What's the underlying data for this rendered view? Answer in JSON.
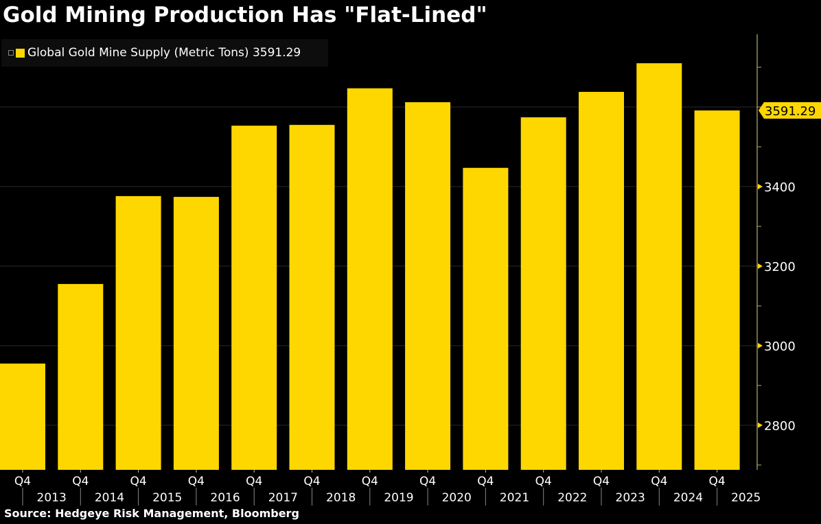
{
  "chart_data": {
    "type": "bar",
    "title": "Gold Mining Production Has \"Flat-Lined\"",
    "source": "Source: Hedgeye Risk Management, Bloomberg",
    "series": [
      {
        "name": "Global Gold Mine Supply (Metric Tons)",
        "last_value_label": "3591.29",
        "color": "#ffd700",
        "values": [
          2955,
          3155,
          3376,
          3374,
          3553,
          3555,
          3647,
          3612,
          3447,
          3574,
          3638,
          3710,
          3591.29
        ]
      }
    ],
    "categories": [
      "Q4 2013",
      "Q4 2014",
      "Q4 2015",
      "Q4 2016",
      "Q4 2017",
      "Q4 2018",
      "Q4 2019",
      "Q4 2020",
      "Q4 2021",
      "Q4 2022",
      "Q4 2023",
      "Q4 2024",
      "Q4 2025"
    ],
    "x_quarter_labels": [
      "Q4",
      "Q4",
      "Q4",
      "Q4",
      "Q4",
      "Q4",
      "Q4",
      "Q4",
      "Q4",
      "Q4",
      "Q4",
      "Q4",
      "Q4"
    ],
    "x_year_labels": [
      "2013",
      "2014",
      "2015",
      "2016",
      "2017",
      "2018",
      "2019",
      "2020",
      "2021",
      "2022",
      "2023",
      "2024",
      "2025"
    ],
    "y_ticks": [
      2800,
      3000,
      3200,
      3400
    ],
    "y_tick_labels": [
      "2800",
      "3000",
      "3200",
      "3400"
    ],
    "ylim": [
      2688,
      3790
    ],
    "y_axis_side": "right",
    "grid": true,
    "legend_position": "top-left",
    "background": "#000000"
  }
}
